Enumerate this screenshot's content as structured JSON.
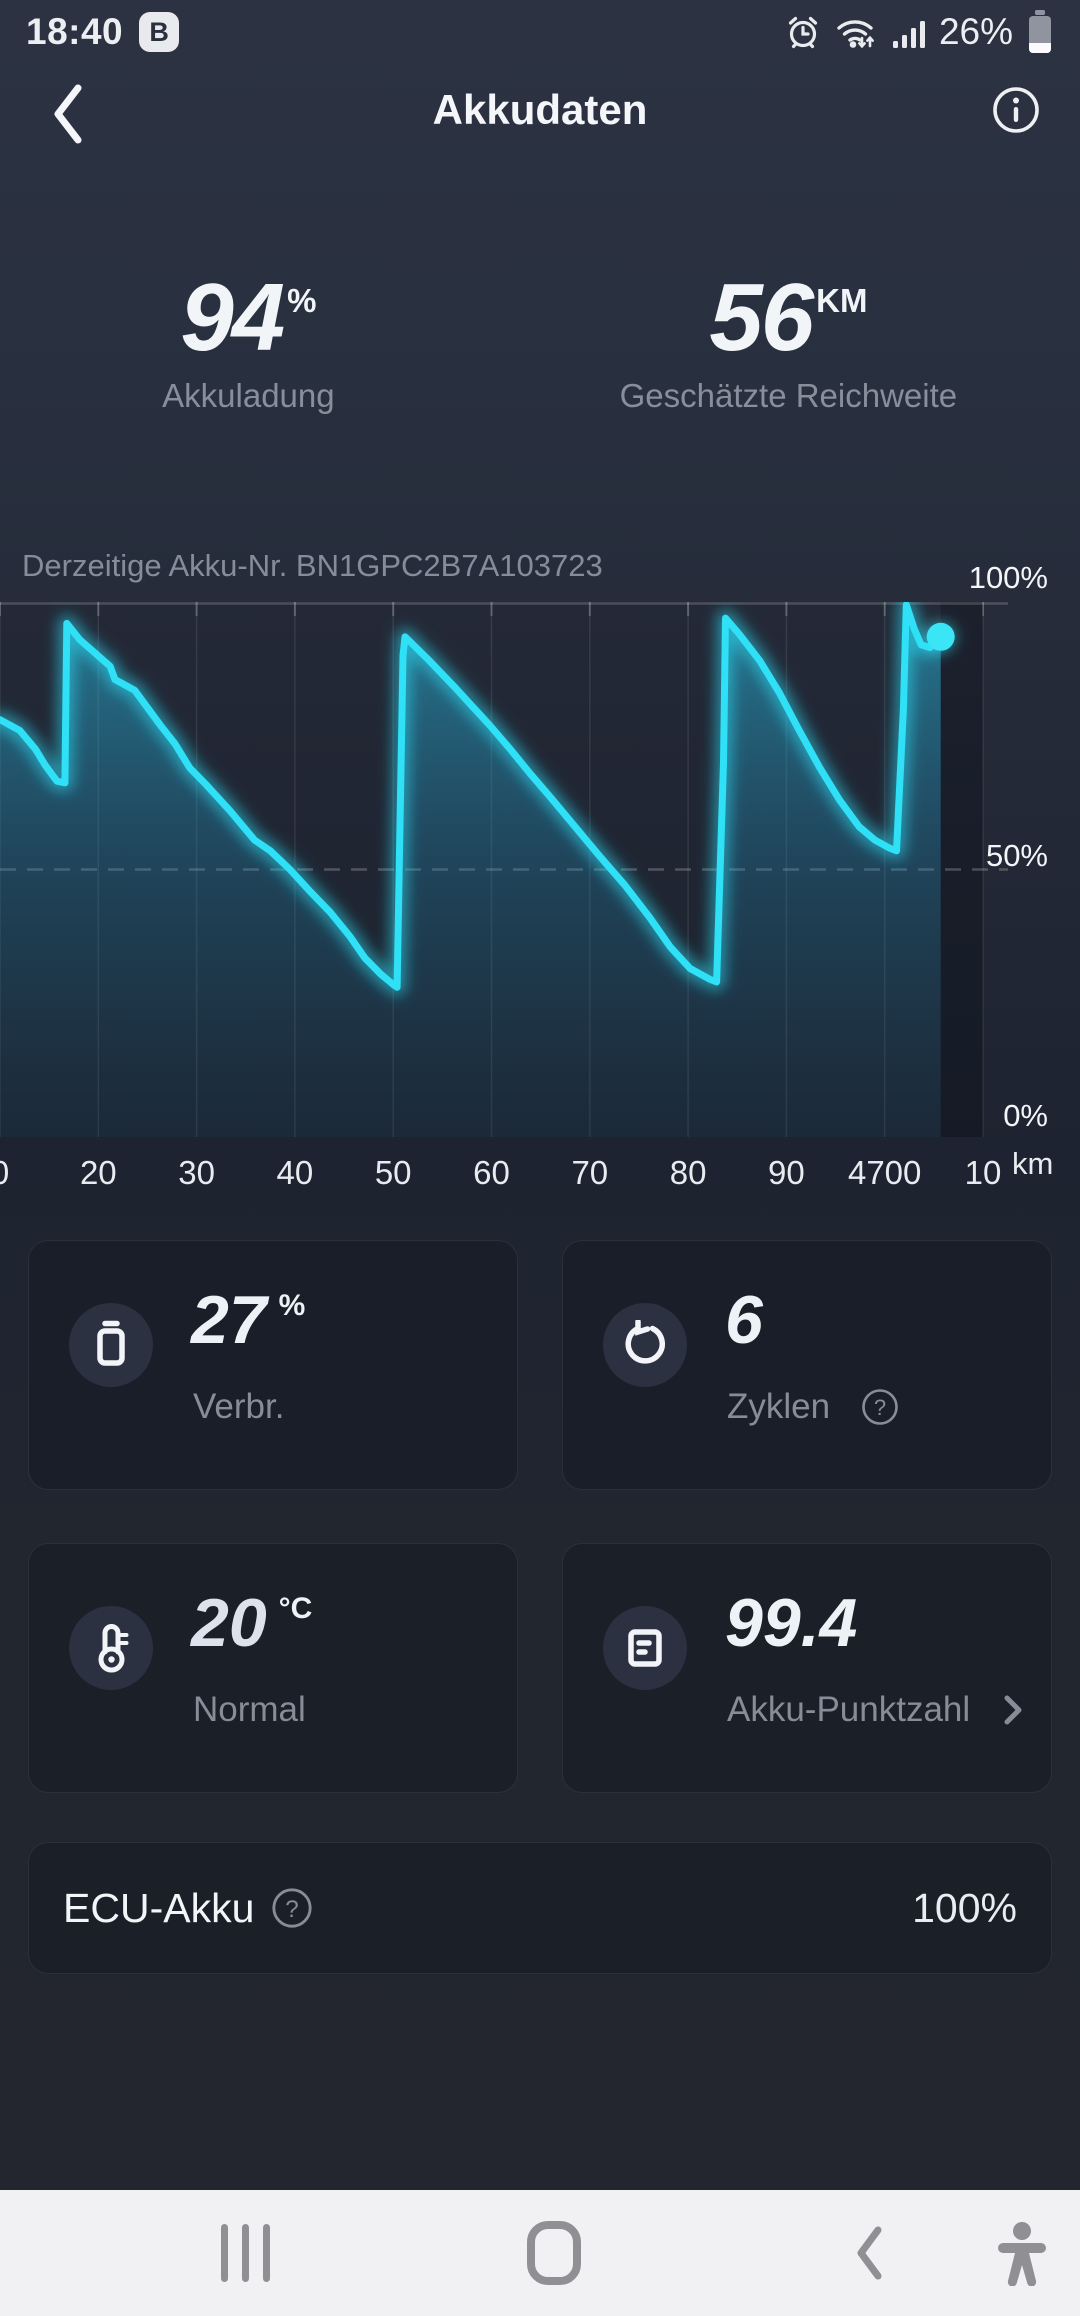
{
  "status_bar": {
    "time": "18:40",
    "badge": "B",
    "battery_percent": "26%",
    "icons": [
      "alarm-icon",
      "wifi-icon",
      "signal-icon",
      "battery-icon"
    ]
  },
  "header": {
    "title": "Akkudaten",
    "icons": [
      "back-icon",
      "info-icon"
    ]
  },
  "summary": {
    "charge": {
      "value": "94",
      "unit": "%",
      "label": "Akkuladung"
    },
    "range": {
      "value": "56",
      "unit": "KM",
      "label": "Geschätzte Reichweite"
    }
  },
  "battery_serial": {
    "label": "Derzeitige Akku-Nr. BN1GPC2B7A103723"
  },
  "chart_data": {
    "type": "area",
    "x_axis_unit": "km",
    "x_tick_labels": [
      "0",
      "20",
      "30",
      "40",
      "50",
      "60",
      "70",
      "80",
      "90",
      "4700",
      "10"
    ],
    "x_tick_km": [
      4610,
      4620,
      4630,
      4640,
      4650,
      4660,
      4670,
      4680,
      4690,
      4700,
      4710
    ],
    "y_tick_labels": [
      "0%",
      "50%",
      "100%"
    ],
    "ylim": [
      0,
      100
    ],
    "dashed_gridline_pct": 50,
    "line_color": "#2fe0f6",
    "marker_color": "#3ae6f6",
    "series": [
      {
        "name": "Akkuladung %",
        "points": [
          [
            4610,
            78
          ],
          [
            4612,
            76
          ],
          [
            4613.6,
            72.5
          ],
          [
            4614.6,
            69.5
          ],
          [
            4615.8,
            66.5
          ],
          [
            4616.6,
            66.2
          ],
          [
            4616.8,
            96
          ],
          [
            4618.1,
            93
          ],
          [
            4621.2,
            88
          ],
          [
            4621.7,
            85.5
          ],
          [
            4623.7,
            83.5
          ],
          [
            4626.3,
            77
          ],
          [
            4627.8,
            73.5
          ],
          [
            4629.3,
            69
          ],
          [
            4630.9,
            66
          ],
          [
            4633.4,
            61
          ],
          [
            4635.9,
            55.5
          ],
          [
            4637.5,
            53.5
          ],
          [
            4639.5,
            50
          ],
          [
            4641.5,
            46
          ],
          [
            4643.6,
            42
          ],
          [
            4645.6,
            37.5
          ],
          [
            4647.1,
            33.5
          ],
          [
            4648.7,
            30.5
          ],
          [
            4650,
            28.5
          ],
          [
            4650.4,
            28
          ],
          [
            4651,
            90
          ],
          [
            4651.2,
            93.5
          ],
          [
            4653.7,
            89
          ],
          [
            4656.3,
            84
          ],
          [
            4657.8,
            81
          ],
          [
            4659.8,
            77
          ],
          [
            4661.9,
            72.5
          ],
          [
            4663.9,
            68
          ],
          [
            4666,
            63.5
          ],
          [
            4668.5,
            58
          ],
          [
            4671,
            52.5
          ],
          [
            4673.6,
            47
          ],
          [
            4676.1,
            41
          ],
          [
            4678.2,
            35.5
          ],
          [
            4680.2,
            31.5
          ],
          [
            4682.2,
            29.5
          ],
          [
            4682.9,
            29
          ],
          [
            4683.6,
            70
          ],
          [
            4683.8,
            97
          ],
          [
            4685.2,
            94
          ],
          [
            4687.3,
            89
          ],
          [
            4689.3,
            83
          ],
          [
            4691.3,
            76
          ],
          [
            4693.4,
            69
          ],
          [
            4695.4,
            63
          ],
          [
            4697.4,
            58
          ],
          [
            4699,
            55.5
          ],
          [
            4700.5,
            54
          ],
          [
            4701.2,
            53.5
          ],
          [
            4701.9,
            80
          ],
          [
            4702.2,
            99.5
          ],
          [
            4703,
            95
          ],
          [
            4703.7,
            92
          ],
          [
            4704.6,
            91.5
          ],
          [
            4705.7,
            93.5
          ]
        ]
      }
    ],
    "marker": {
      "km": 4705.7,
      "pct": 93.5
    }
  },
  "cards": [
    {
      "icon": "battery-icon",
      "value": "27",
      "unit": "%",
      "label": "Verbr."
    },
    {
      "icon": "cycle-icon",
      "value": "6",
      "unit": "",
      "label": "Zyklen"
    },
    {
      "icon": "thermometer-icon",
      "value": "20",
      "unit": "°C",
      "label": "Normal"
    },
    {
      "icon": "score-icon",
      "value": "99.4",
      "unit": "",
      "label": "Akku-Punktzahl"
    }
  ],
  "ecu": {
    "label": "ECU-Akku",
    "value": "100%"
  },
  "navbar": {
    "icons": [
      "recents-icon",
      "home-icon",
      "back-icon",
      "accessibility-icon"
    ]
  }
}
